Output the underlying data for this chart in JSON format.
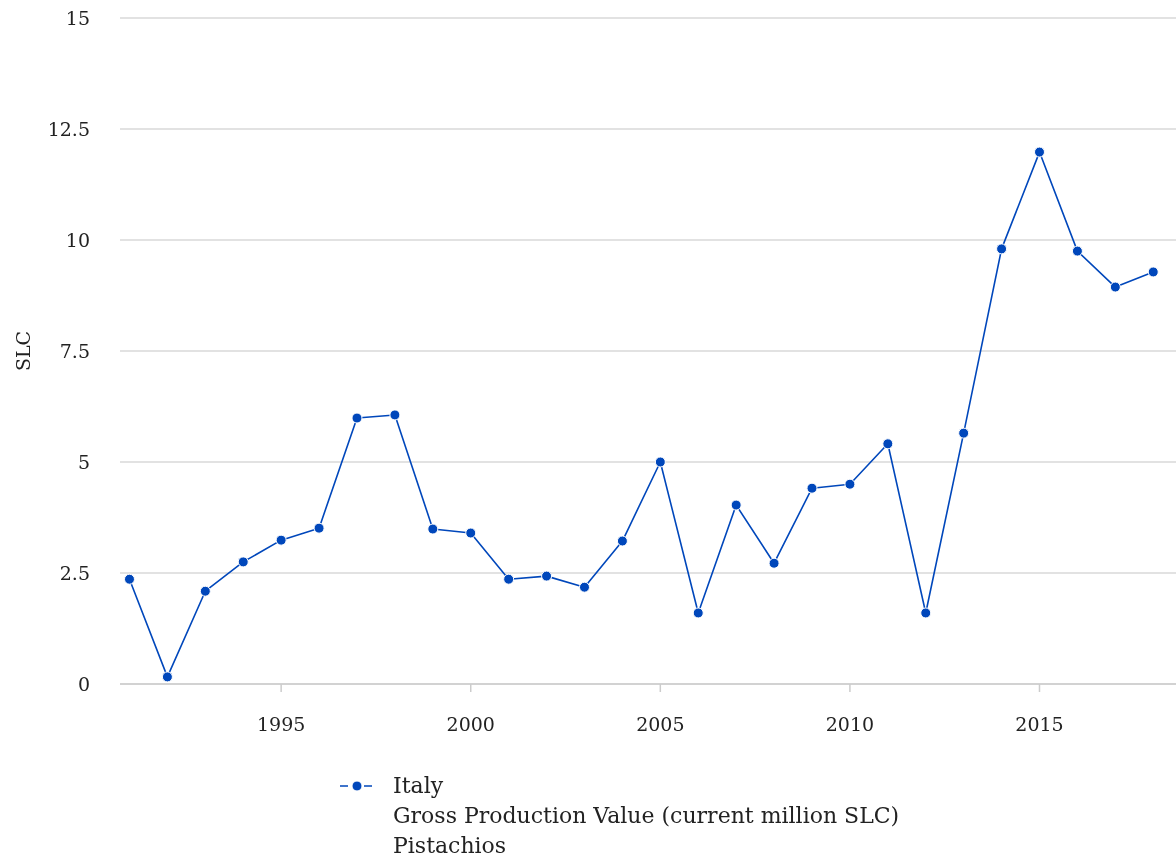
{
  "chart_data": {
    "type": "line",
    "ylabel": "SLC",
    "x": [
      1991,
      1992,
      1993,
      1994,
      1995,
      1996,
      1997,
      1998,
      1999,
      2000,
      2001,
      2002,
      2003,
      2004,
      2005,
      2006,
      2007,
      2008,
      2009,
      2010,
      2011,
      2012,
      2013,
      2014,
      2015,
      2016,
      2017,
      2018
    ],
    "series": [
      {
        "name": "Italy",
        "color": "#0047bb",
        "values": [
          2.36,
          0.16,
          2.09,
          2.75,
          3.24,
          3.51,
          5.99,
          6.06,
          3.49,
          3.4,
          2.36,
          2.43,
          2.18,
          3.22,
          5.0,
          1.6,
          4.03,
          2.72,
          4.41,
          4.5,
          5.41,
          1.6,
          5.65,
          9.8,
          11.98,
          9.75,
          8.94,
          9.28
        ]
      }
    ],
    "annotations": [
      "Gross Production Value (current million SLC)",
      "Pistachios"
    ],
    "xlim": [
      1990.75,
      2018.6
    ],
    "xticks": [
      1995,
      2000,
      2005,
      2010,
      2015
    ],
    "ylim": [
      0,
      15
    ],
    "yticks": [
      0,
      2.5,
      5,
      7.5,
      10,
      12.5,
      15
    ],
    "grid": "y",
    "legend": "bottom",
    "marker": "circle",
    "line_style": "solid"
  }
}
